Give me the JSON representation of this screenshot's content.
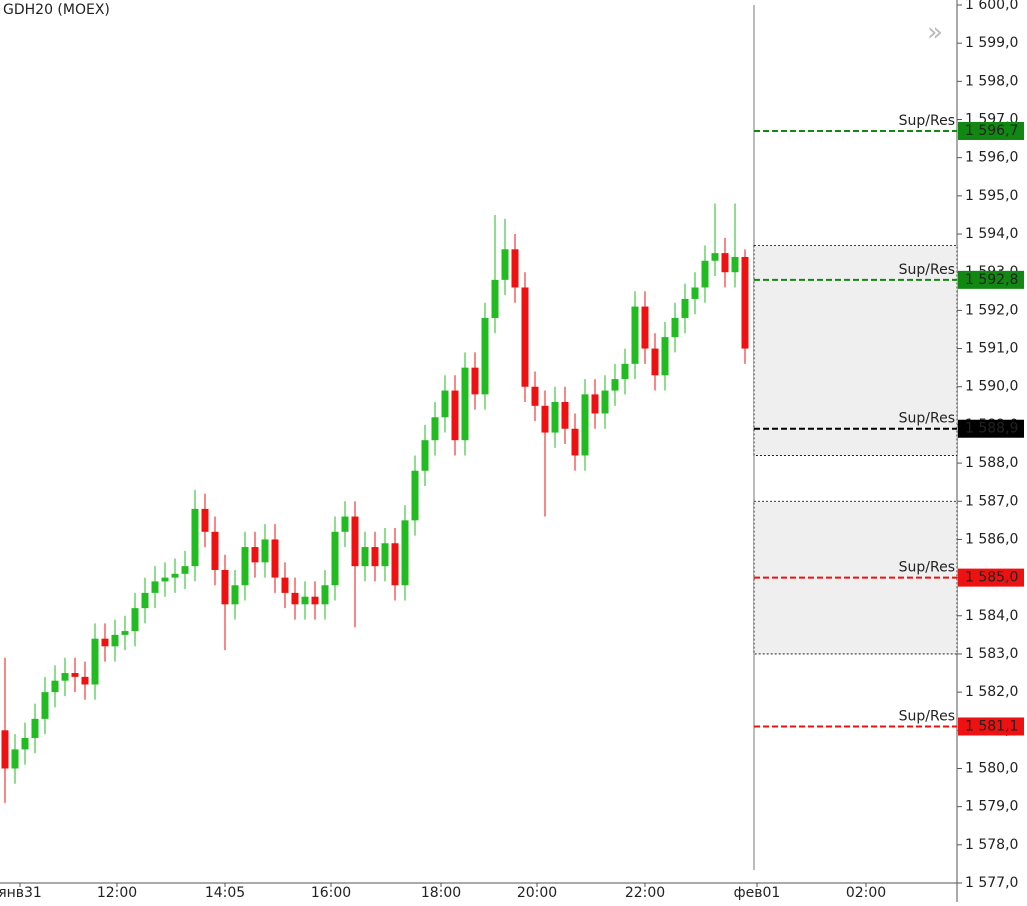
{
  "chart_data": {
    "type": "candlestick",
    "title": "GDH20 (MOEX)",
    "up_color": "#22bb22",
    "down_color": "#ee1111",
    "x": [
      0,
      1,
      2,
      3,
      4,
      5,
      6,
      7,
      8,
      9,
      10,
      11,
      12,
      13,
      14,
      15,
      16,
      17,
      18,
      19,
      20,
      21,
      22,
      23,
      24,
      25,
      26,
      27,
      28,
      29,
      30,
      31,
      32,
      33,
      34,
      35,
      36,
      37,
      38,
      39,
      40,
      41,
      42,
      43,
      44,
      45,
      46,
      47,
      48,
      49,
      50,
      51,
      52,
      53,
      54,
      55,
      56,
      57,
      58,
      59,
      60,
      61,
      62,
      63,
      64,
      65,
      66,
      67,
      68,
      69,
      70,
      71,
      72,
      73,
      74
    ],
    "open": [
      1581.0,
      1580.0,
      1580.5,
      1580.8,
      1581.3,
      1582.0,
      1582.3,
      1582.5,
      1582.4,
      1582.2,
      1583.4,
      1583.2,
      1583.5,
      1583.6,
      1584.2,
      1584.6,
      1584.9,
      1585.0,
      1585.1,
      1585.3,
      1586.8,
      1586.2,
      1585.2,
      1584.3,
      1584.8,
      1585.8,
      1585.4,
      1586.0,
      1585.0,
      1584.6,
      1584.3,
      1584.5,
      1584.3,
      1584.8,
      1586.2,
      1586.6,
      1585.3,
      1585.8,
      1585.3,
      1585.9,
      1584.8,
      1586.5,
      1587.8,
      1588.6,
      1589.2,
      1589.9,
      1588.6,
      1590.5,
      1589.8,
      1591.8,
      1592.8,
      1593.6,
      1592.6,
      1590.0,
      1589.5,
      1588.8,
      1589.6,
      1588.9,
      1588.2,
      1589.8,
      1589.3,
      1589.9,
      1590.2,
      1590.6,
      1592.1,
      1591.0,
      1590.3,
      1591.3,
      1591.8,
      1592.3,
      1592.6,
      1593.3,
      1593.5,
      1593.0,
      1593.4
    ],
    "high": [
      1582.9,
      1580.9,
      1581.2,
      1581.7,
      1582.4,
      1582.7,
      1582.9,
      1582.9,
      1582.8,
      1583.8,
      1583.8,
      1583.9,
      1584.0,
      1584.6,
      1585.0,
      1585.3,
      1585.4,
      1585.5,
      1585.7,
      1587.3,
      1587.2,
      1586.6,
      1585.6,
      1585.2,
      1586.2,
      1586.2,
      1586.4,
      1586.4,
      1585.4,
      1585.0,
      1584.9,
      1584.9,
      1585.2,
      1586.6,
      1587.0,
      1587.0,
      1586.2,
      1586.2,
      1586.3,
      1586.3,
      1586.9,
      1588.2,
      1589.0,
      1589.6,
      1590.3,
      1590.3,
      1590.9,
      1590.9,
      1592.2,
      1594.5,
      1594.4,
      1594.0,
      1593.0,
      1590.4,
      1589.9,
      1590.0,
      1590.0,
      1589.3,
      1590.2,
      1590.2,
      1590.3,
      1590.6,
      1591.0,
      1592.5,
      1592.5,
      1591.4,
      1591.7,
      1592.2,
      1592.7,
      1593.0,
      1593.7,
      1594.8,
      1593.9,
      1594.8,
      1593.6
    ],
    "low": [
      1579.1,
      1579.6,
      1580.1,
      1580.4,
      1580.9,
      1581.6,
      1581.9,
      1582.0,
      1581.8,
      1581.8,
      1582.8,
      1582.8,
      1583.1,
      1583.2,
      1583.8,
      1584.2,
      1584.5,
      1584.6,
      1584.7,
      1584.9,
      1585.8,
      1584.8,
      1583.1,
      1583.9,
      1584.4,
      1585.0,
      1585.0,
      1584.6,
      1584.2,
      1583.9,
      1583.9,
      1583.9,
      1583.9,
      1584.4,
      1585.8,
      1583.7,
      1584.9,
      1584.9,
      1584.9,
      1584.4,
      1584.4,
      1586.1,
      1587.4,
      1588.2,
      1588.8,
      1588.2,
      1588.2,
      1589.4,
      1589.4,
      1591.4,
      1592.4,
      1592.2,
      1589.6,
      1589.1,
      1586.6,
      1588.4,
      1588.5,
      1587.8,
      1587.8,
      1588.9,
      1588.9,
      1589.5,
      1589.8,
      1590.2,
      1590.6,
      1589.9,
      1589.9,
      1590.9,
      1591.4,
      1591.9,
      1592.2,
      1592.9,
      1592.6,
      1592.6,
      1590.6
    ],
    "close": [
      1580.0,
      1580.5,
      1580.8,
      1581.3,
      1582.0,
      1582.3,
      1582.5,
      1582.4,
      1582.2,
      1583.4,
      1583.2,
      1583.5,
      1583.6,
      1584.2,
      1584.6,
      1584.9,
      1585.0,
      1585.1,
      1585.3,
      1586.8,
      1586.2,
      1585.2,
      1584.3,
      1584.8,
      1585.8,
      1585.4,
      1586.0,
      1585.0,
      1584.6,
      1584.3,
      1584.5,
      1584.3,
      1584.8,
      1586.2,
      1586.6,
      1585.3,
      1585.8,
      1585.3,
      1585.9,
      1584.8,
      1586.5,
      1587.8,
      1588.6,
      1589.2,
      1589.9,
      1588.6,
      1590.5,
      1589.8,
      1591.8,
      1592.8,
      1593.6,
      1592.6,
      1590.0,
      1589.5,
      1588.8,
      1589.6,
      1588.9,
      1588.2,
      1589.8,
      1589.3,
      1589.9,
      1590.2,
      1590.6,
      1592.1,
      1591.0,
      1590.3,
      1591.3,
      1591.8,
      1592.3,
      1592.6,
      1593.3,
      1593.5,
      1593.0,
      1593.4,
      1591.0
    ],
    "xlim": [
      -0.5,
      95.2
    ],
    "xticks": [
      {
        "value": 1.5,
        "label": "янв31"
      },
      {
        "value": 11.2,
        "label": "12:00"
      },
      {
        "value": 22,
        "label": "14:05"
      },
      {
        "value": 32.6,
        "label": "16:00"
      },
      {
        "value": 43.6,
        "label": "18:00"
      },
      {
        "value": 53.2,
        "label": "20:00"
      },
      {
        "value": 64,
        "label": "22:00"
      },
      {
        "value": 75.2,
        "label": "фев01"
      },
      {
        "value": 86.1,
        "label": "02:00"
      }
    ],
    "ylim": [
      1577.0,
      1600.0
    ],
    "yticks": [
      {
        "value": 1577,
        "label": "1 577,0"
      },
      {
        "value": 1578,
        "label": "1 578,0"
      },
      {
        "value": 1579,
        "label": "1 579,0"
      },
      {
        "value": 1580,
        "label": "1 580,0"
      },
      {
        "value": 1581,
        "label": "1 581,0"
      },
      {
        "value": 1582,
        "label": "1 582,0"
      },
      {
        "value": 1583,
        "label": "1 583,0"
      },
      {
        "value": 1584,
        "label": "1 584,0"
      },
      {
        "value": 1585,
        "label": "1 585,0"
      },
      {
        "value": 1586,
        "label": "1 586,0"
      },
      {
        "value": 1587,
        "label": "1 587,0"
      },
      {
        "value": 1588,
        "label": "1 588,0"
      },
      {
        "value": 1589,
        "label": "1 589,0"
      },
      {
        "value": 1590,
        "label": "1 590,0"
      },
      {
        "value": 1591,
        "label": "1 591,0"
      },
      {
        "value": 1592,
        "label": "1 592,0"
      },
      {
        "value": 1593,
        "label": "1 593,0"
      },
      {
        "value": 1594,
        "label": "1 594,0"
      },
      {
        "value": 1595,
        "label": "1 595,0"
      },
      {
        "value": 1596,
        "label": "1 596,0"
      },
      {
        "value": 1597,
        "label": "1 597,0"
      },
      {
        "value": 1598,
        "label": "1 598,0"
      },
      {
        "value": 1599,
        "label": "1 599,0"
      },
      {
        "value": 1600,
        "label": "1 600,0"
      }
    ],
    "zones": [
      {
        "from": 1593.7,
        "to": 1588.2
      },
      {
        "from": 1587.0,
        "to": 1583.0
      }
    ],
    "levels": [
      {
        "value": 1596.7,
        "label": "1 596,7",
        "text": "Sup/Res",
        "color": "#118811"
      },
      {
        "value": 1592.8,
        "label": "1 592,8",
        "text": "Sup/Res",
        "color": "#118811"
      },
      {
        "value": 1588.9,
        "label": "1 588,9",
        "text": "Sup/Res",
        "color": "#000000"
      },
      {
        "value": 1585.0,
        "label": "1 585,0",
        "text": "Sup/Res",
        "color": "#ee1111"
      },
      {
        "value": 1581.1,
        "label": "1 581,1",
        "text": "Sup/Res",
        "color": "#ee1111"
      }
    ]
  }
}
